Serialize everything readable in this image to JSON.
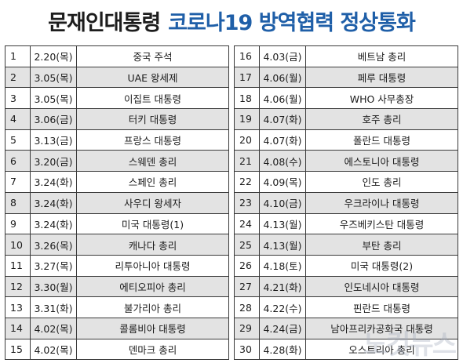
{
  "title": {
    "part1": "문재인대통령",
    "part2": "코로나19 방역협력 정상통화"
  },
  "left_rows": [
    {
      "no": "1",
      "date": "2.20(목)",
      "name": "중국 주석"
    },
    {
      "no": "2",
      "date": "3.05(목)",
      "name": "UAE 왕세제"
    },
    {
      "no": "3",
      "date": "3.05(목)",
      "name": "이집트 대통령"
    },
    {
      "no": "4",
      "date": "3.06(금)",
      "name": "터키 대통령"
    },
    {
      "no": "5",
      "date": "3.13(금)",
      "name": "프랑스 대통령"
    },
    {
      "no": "6",
      "date": "3.20(금)",
      "name": "스웨덴 총리"
    },
    {
      "no": "7",
      "date": "3.24(화)",
      "name": "스페인 총리"
    },
    {
      "no": "8",
      "date": "3.24(화)",
      "name": "사우디 왕세자"
    },
    {
      "no": "9",
      "date": "3.24(화)",
      "name": "미국 대통령(1)"
    },
    {
      "no": "10",
      "date": "3.26(목)",
      "name": "캐나다 총리"
    },
    {
      "no": "11",
      "date": "3.27(목)",
      "name": "리투아니아 대통령"
    },
    {
      "no": "12",
      "date": "3.30(월)",
      "name": "에티오피아 총리"
    },
    {
      "no": "13",
      "date": "3.31(화)",
      "name": "불가리아 총리"
    },
    {
      "no": "14",
      "date": "4.02(목)",
      "name": "콜롬비아 대통령"
    },
    {
      "no": "15",
      "date": "4.02(목)",
      "name": "덴마크 총리"
    }
  ],
  "right_rows": [
    {
      "no": "16",
      "date": "4.03(금)",
      "name": "베트남 총리"
    },
    {
      "no": "17",
      "date": "4.06(월)",
      "name": "페루 대통령"
    },
    {
      "no": "18",
      "date": "4.06(월)",
      "name": "WHO 사무총장"
    },
    {
      "no": "19",
      "date": "4.07(화)",
      "name": "호주 총리"
    },
    {
      "no": "20",
      "date": "4.07(화)",
      "name": "폴란드 대통령"
    },
    {
      "no": "21",
      "date": "4.08(수)",
      "name": "에스토니아 대통령"
    },
    {
      "no": "22",
      "date": "4.09(목)",
      "name": "인도 총리"
    },
    {
      "no": "23",
      "date": "4.10(금)",
      "name": "우크라이나 대통령"
    },
    {
      "no": "24",
      "date": "4.13(월)",
      "name": "우즈베키스탄 대통령"
    },
    {
      "no": "25",
      "date": "4.13(월)",
      "name": "부탄 총리"
    },
    {
      "no": "26",
      "date": "4.18(토)",
      "name": "미국 대통령(2)"
    },
    {
      "no": "27",
      "date": "4.21(화)",
      "name": "인도네시아 대통령"
    },
    {
      "no": "28",
      "date": "4.22(수)",
      "name": "핀란드 대통령"
    },
    {
      "no": "29",
      "date": "4.24(금)",
      "name": "남아프리카공화국 대통령"
    },
    {
      "no": "30",
      "date": "4.28(화)",
      "name": "오스트리아 총리"
    }
  ],
  "watermark": "노컷뉴스"
}
